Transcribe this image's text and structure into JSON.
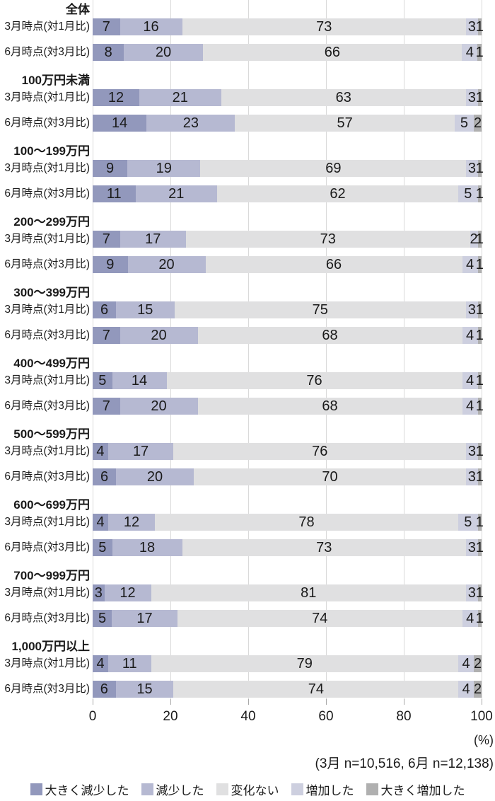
{
  "chart_data": {
    "type": "bar",
    "orientation": "horizontal",
    "stacked": true,
    "title": "",
    "xlabel": "(%)",
    "xlim": [
      0,
      100
    ],
    "x_ticks": [
      0,
      20,
      40,
      60,
      80,
      100
    ],
    "series_labels": [
      "大きく減少した",
      "減少した",
      "変化ない",
      "増加した",
      "大きく増加した"
    ],
    "series_colors": [
      "#9298bc",
      "#b6b9d2",
      "#e0e0e1",
      "#cdcfdf",
      "#b0b0b0"
    ],
    "row_labels": [
      "3月時点(対1月比)",
      "6月時点(対3月比)"
    ],
    "groups": [
      {
        "label": "全体",
        "rows": [
          [
            7,
            16,
            73,
            3,
            1
          ],
          [
            8,
            20,
            66,
            4,
            1
          ]
        ]
      },
      {
        "label": "100万円未満",
        "rows": [
          [
            12,
            21,
            63,
            3,
            1
          ],
          [
            14,
            23,
            57,
            5,
            2
          ]
        ]
      },
      {
        "label": "100〜199万円",
        "rows": [
          [
            9,
            19,
            69,
            3,
            1
          ],
          [
            11,
            21,
            62,
            5,
            1
          ]
        ]
      },
      {
        "label": "200〜299万円",
        "rows": [
          [
            7,
            17,
            73,
            2,
            1
          ],
          [
            9,
            20,
            66,
            4,
            1
          ]
        ]
      },
      {
        "label": "300〜399万円",
        "rows": [
          [
            6,
            15,
            75,
            3,
            1
          ],
          [
            7,
            20,
            68,
            4,
            1
          ]
        ]
      },
      {
        "label": "400〜499万円",
        "rows": [
          [
            5,
            14,
            76,
            4,
            1
          ],
          [
            7,
            20,
            68,
            4,
            1
          ]
        ]
      },
      {
        "label": "500〜599万円",
        "rows": [
          [
            4,
            17,
            76,
            3,
            1
          ],
          [
            6,
            20,
            70,
            3,
            1
          ]
        ]
      },
      {
        "label": "600〜699万円",
        "rows": [
          [
            4,
            12,
            78,
            5,
            1
          ],
          [
            5,
            18,
            73,
            3,
            1
          ]
        ]
      },
      {
        "label": "700〜999万円",
        "rows": [
          [
            3,
            12,
            81,
            3,
            1
          ],
          [
            5,
            17,
            74,
            4,
            1
          ]
        ]
      },
      {
        "label": "1,000万円以上",
        "rows": [
          [
            4,
            11,
            79,
            4,
            2
          ],
          [
            6,
            15,
            74,
            4,
            2
          ]
        ]
      }
    ],
    "note": "(3月 n=10,516, 6月 n=12,138)",
    "legend_position": "bottom",
    "grid": true
  },
  "axis": {
    "unit_label": "(%)"
  },
  "footer": {
    "sample_note": "(3月 n=10,516, 6月 n=12,138)"
  }
}
